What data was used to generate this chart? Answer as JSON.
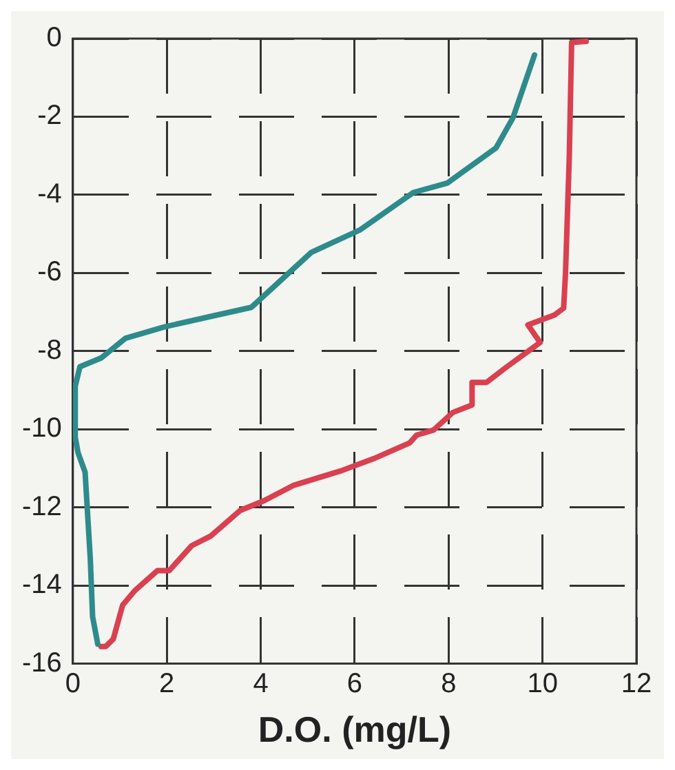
{
  "chart_data": {
    "type": "line",
    "xlabel": "D.O. (mg/L)",
    "xlim": [
      0,
      12
    ],
    "xticks": [
      0,
      2,
      4,
      6,
      8,
      10,
      12
    ],
    "ylim": [
      -16,
      0
    ],
    "yticks": [
      -16,
      -14,
      -12,
      -10,
      -8,
      -6,
      -4,
      -2,
      0
    ],
    "grid": true,
    "legend": false,
    "marker": "none",
    "line_style": "solid",
    "series": [
      {
        "color": "#2e8b8b",
        "x": [
          0.53,
          0.42,
          0.37,
          0.26,
          0.11,
          0.05,
          0.05,
          0.15,
          0.61,
          1.12,
          1.95,
          2.98,
          3.8,
          5.08,
          6.11,
          7.25,
          7.97,
          9.01,
          9.37,
          9.63,
          9.83
        ],
        "values": [
          -15.5,
          -14.8,
          -13.3,
          -11.1,
          -10.6,
          -10.2,
          -8.9,
          -8.4,
          -8.17,
          -7.67,
          -7.38,
          -7.1,
          -6.88,
          -5.47,
          -4.9,
          -3.94,
          -3.7,
          -2.8,
          -2.03,
          -1.12,
          -0.42
        ]
      },
      {
        "color": "#d94050",
        "x": [
          0.6,
          0.7,
          0.86,
          1.06,
          1.32,
          1.8,
          2.05,
          2.53,
          2.94,
          3.56,
          4.07,
          4.69,
          5.72,
          6.45,
          7.17,
          7.32,
          7.68,
          8.09,
          8.5,
          8.5,
          8.81,
          9.22,
          9.95,
          9.69,
          10.25,
          10.45,
          10.49,
          10.57,
          10.62,
          10.93
        ],
        "values": [
          -15.56,
          -15.56,
          -15.37,
          -14.5,
          -14.13,
          -13.62,
          -13.62,
          -12.98,
          -12.73,
          -12.08,
          -11.83,
          -11.44,
          -11.06,
          -10.73,
          -10.35,
          -10.15,
          -10.02,
          -9.57,
          -9.38,
          -8.8,
          -8.8,
          -8.42,
          -7.78,
          -7.33,
          -7.08,
          -6.9,
          -6,
          -3.04,
          -0.1,
          -0.07
        ]
      }
    ]
  }
}
